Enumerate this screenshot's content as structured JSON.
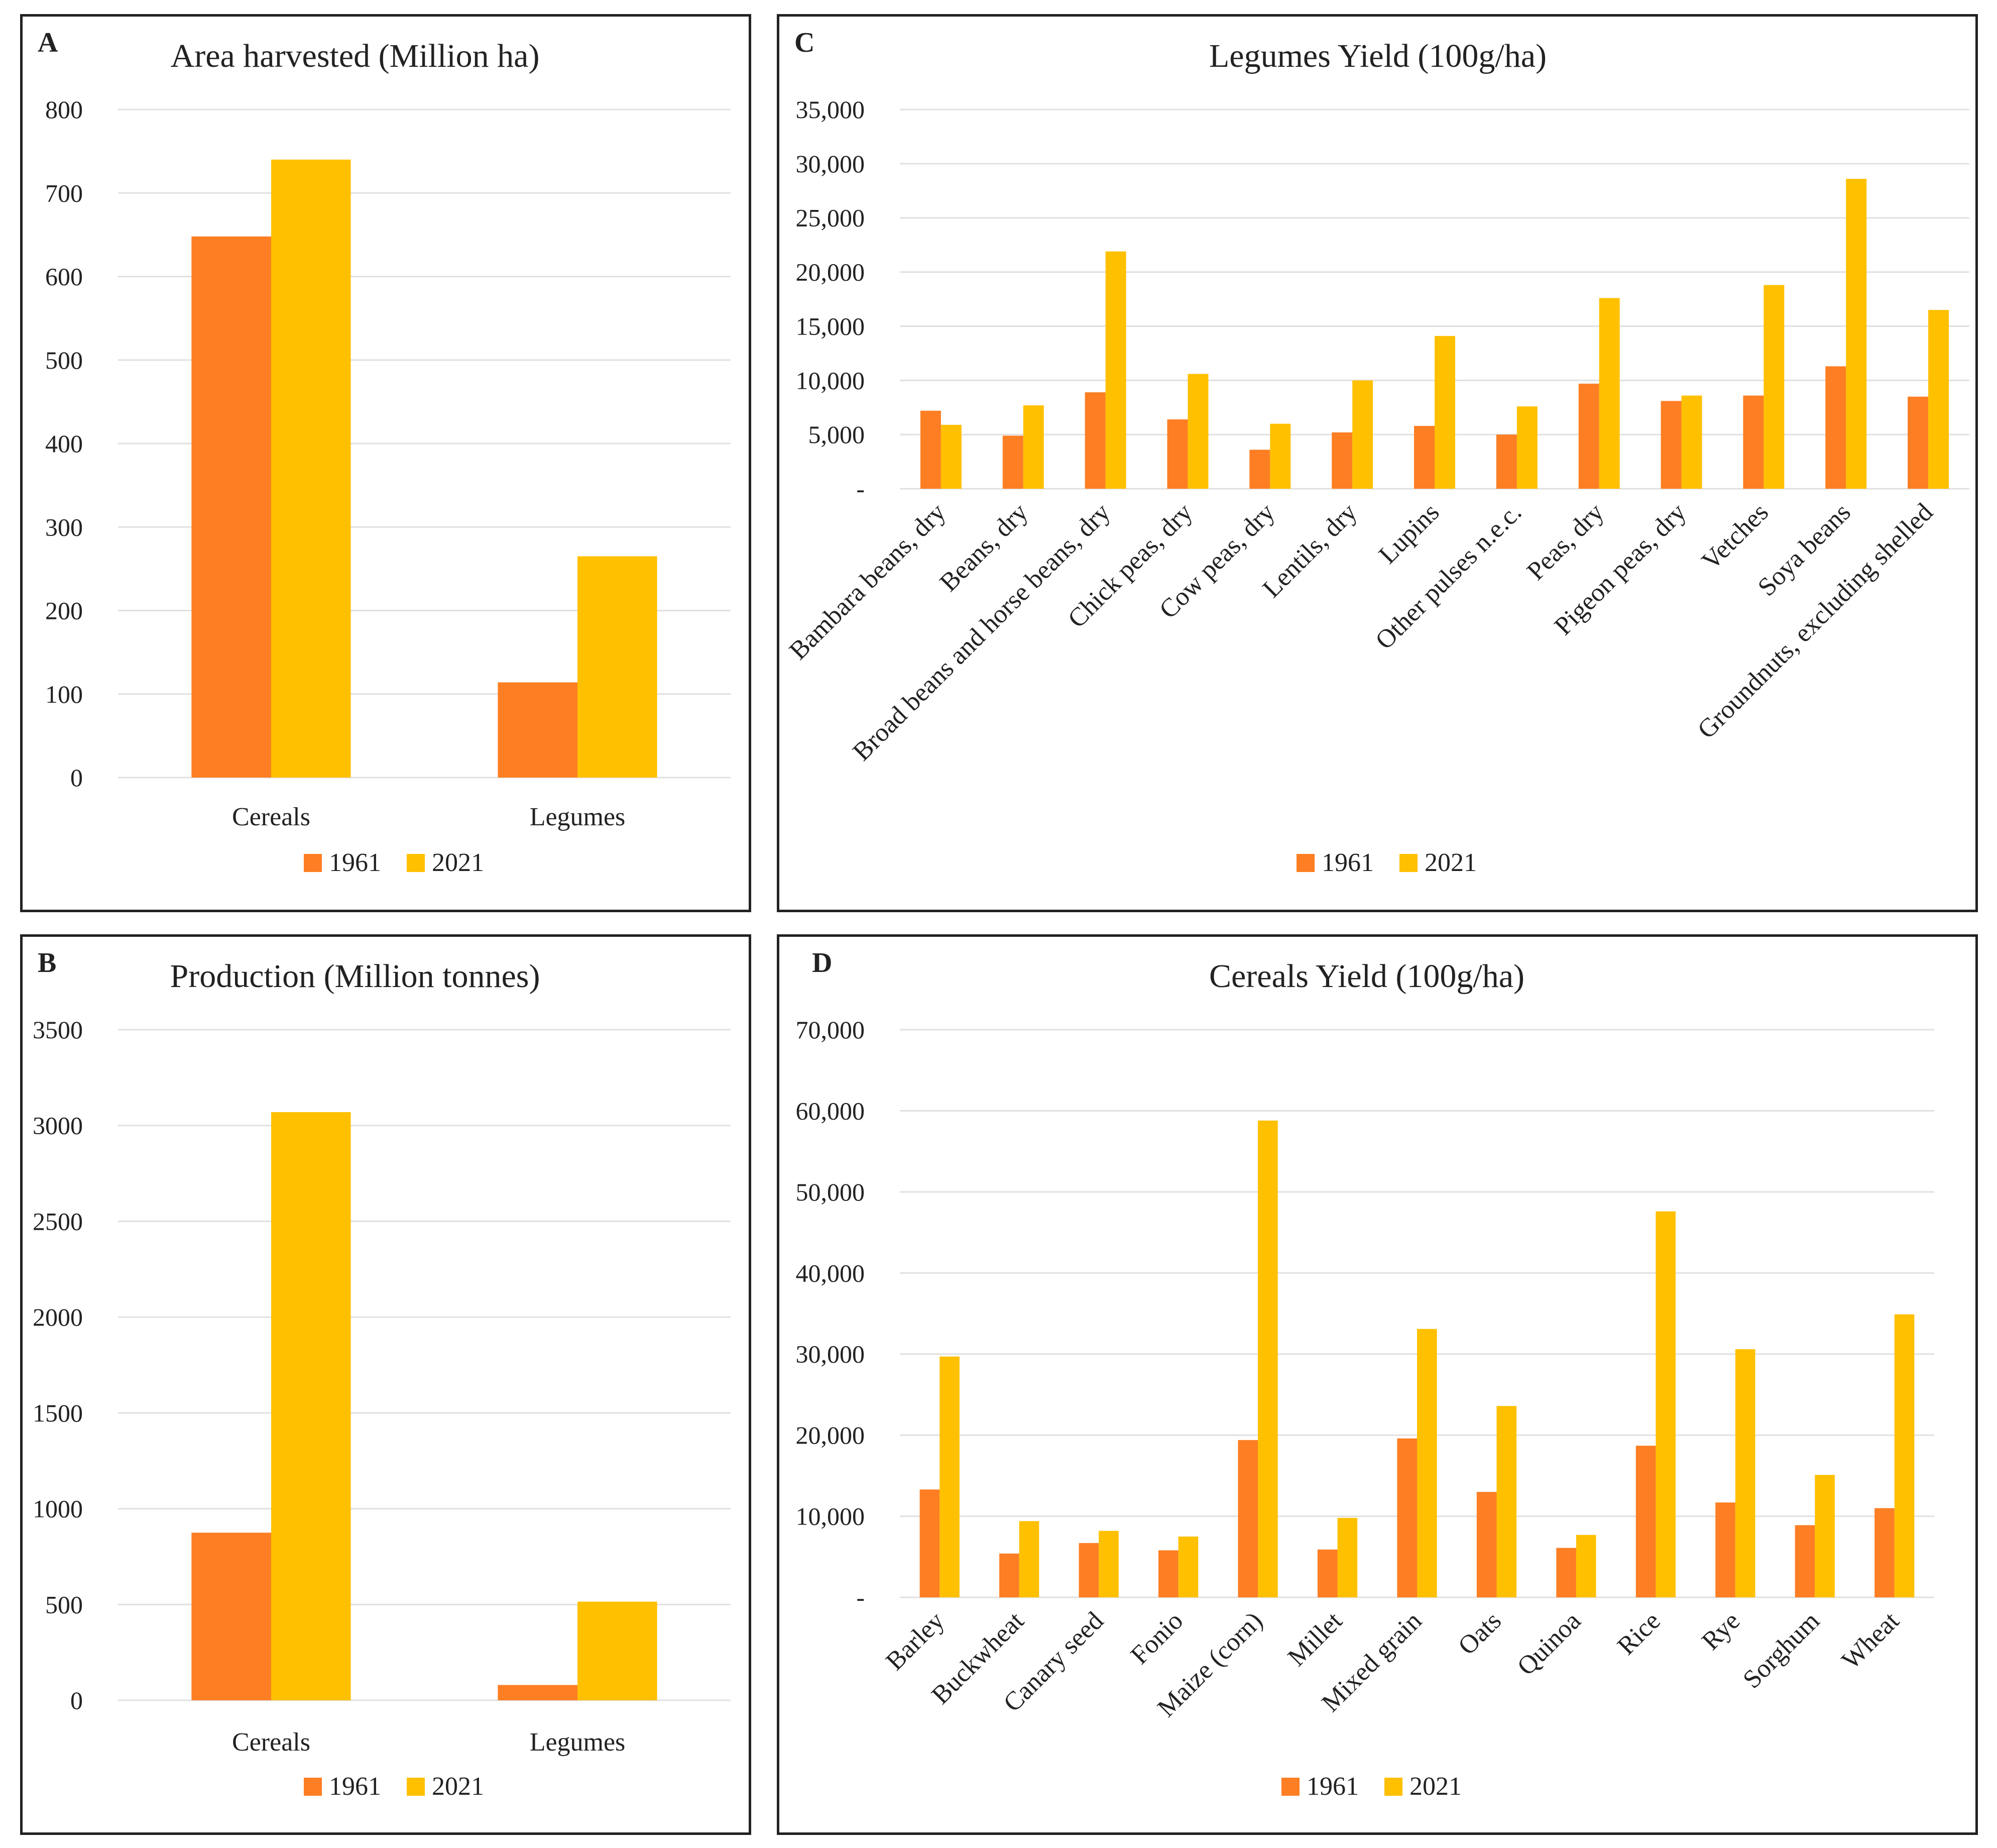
{
  "colors": {
    "series_1961": "#FD7E23",
    "series_2021": "#FFC000",
    "grid": "#e0e0e0"
  },
  "legend": [
    "1961",
    "2021"
  ],
  "chart_data": [
    {
      "letter": "A",
      "type": "bar",
      "title": "Area harvested (Million ha)",
      "categories": [
        "Cereals",
        "Legumes"
      ],
      "series": [
        {
          "name": "1961",
          "values": [
            648,
            114
          ]
        },
        {
          "name": "2021",
          "values": [
            740,
            265
          ]
        }
      ],
      "ylim": [
        0,
        800
      ],
      "yticks": [
        0,
        100,
        200,
        300,
        400,
        500,
        600,
        700,
        800
      ],
      "ytick_labels": [
        "0",
        "100",
        "200",
        "300",
        "400",
        "500",
        "600",
        "700",
        "800"
      ],
      "xlabel": "",
      "ylabel": "",
      "grid": true,
      "legend_position": "bottom"
    },
    {
      "letter": "B",
      "type": "bar",
      "title": "Production (Million tonnes)",
      "categories": [
        "Cereals",
        "Legumes"
      ],
      "series": [
        {
          "name": "1961",
          "values": [
            875,
            80
          ]
        },
        {
          "name": "2021",
          "values": [
            3070,
            515
          ]
        }
      ],
      "ylim": [
        0,
        3500
      ],
      "yticks": [
        0,
        500,
        1000,
        1500,
        2000,
        2500,
        3000,
        3500
      ],
      "ytick_labels": [
        "0",
        "500",
        "1000",
        "1500",
        "2000",
        "2500",
        "3000",
        "3500"
      ],
      "xlabel": "",
      "ylabel": "",
      "grid": true,
      "legend_position": "bottom"
    },
    {
      "letter": "C",
      "type": "bar",
      "title": "Legumes Yield (100g/ha)",
      "categories": [
        "Bambara beans, dry",
        "Beans, dry",
        "Broad beans and horse beans, dry",
        "Chick peas, dry",
        "Cow peas, dry",
        "Lentils, dry",
        "Lupins",
        "Other pulses n.e.c.",
        "Peas, dry",
        "Pigeon peas, dry",
        "Vetches",
        "Soya beans",
        "Groundnuts, excluding shelled"
      ],
      "series": [
        {
          "name": "1961",
          "values": [
            7200,
            4900,
            8900,
            6400,
            3600,
            5200,
            5800,
            5000,
            9700,
            8100,
            8600,
            11300,
            8500
          ]
        },
        {
          "name": "2021",
          "values": [
            5900,
            7700,
            21900,
            10600,
            6000,
            10000,
            14100,
            7600,
            17600,
            8600,
            18800,
            28600,
            16500
          ]
        }
      ],
      "ylim": [
        0,
        35000
      ],
      "yticks": [
        0,
        5000,
        10000,
        15000,
        20000,
        25000,
        30000,
        35000
      ],
      "ytick_labels": [
        "-",
        "5,000",
        "10,000",
        "15,000",
        "20,000",
        "25,000",
        "30,000",
        "35,000"
      ],
      "xlabel": "",
      "ylabel": "",
      "grid": true,
      "legend_position": "bottom"
    },
    {
      "letter": "D",
      "type": "bar",
      "title": "Cereals Yield (100g/ha)",
      "categories": [
        "Barley",
        "Buckwheat",
        "Canary seed",
        "Fonio",
        "Maize (corn)",
        "Millet",
        "Mixed grain",
        "Oats",
        "Quinoa",
        "Rice",
        "Rye",
        "Sorghum",
        "Wheat"
      ],
      "series": [
        {
          "name": "1961",
          "values": [
            13300,
            5400,
            6700,
            5800,
            19400,
            5900,
            19600,
            13000,
            6100,
            18700,
            11700,
            8900,
            11000
          ]
        },
        {
          "name": "2021",
          "values": [
            29700,
            9400,
            8200,
            7500,
            58800,
            9800,
            33100,
            23600,
            7700,
            47600,
            30600,
            15100,
            34900
          ]
        }
      ],
      "ylim": [
        0,
        70000
      ],
      "yticks": [
        0,
        10000,
        20000,
        30000,
        40000,
        50000,
        60000,
        70000
      ],
      "ytick_labels": [
        "-",
        "10,000",
        "20,000",
        "30,000",
        "40,000",
        "50,000",
        "60,000",
        "70,000"
      ],
      "xlabel": "",
      "ylabel": "",
      "grid": true,
      "legend_position": "bottom"
    }
  ]
}
